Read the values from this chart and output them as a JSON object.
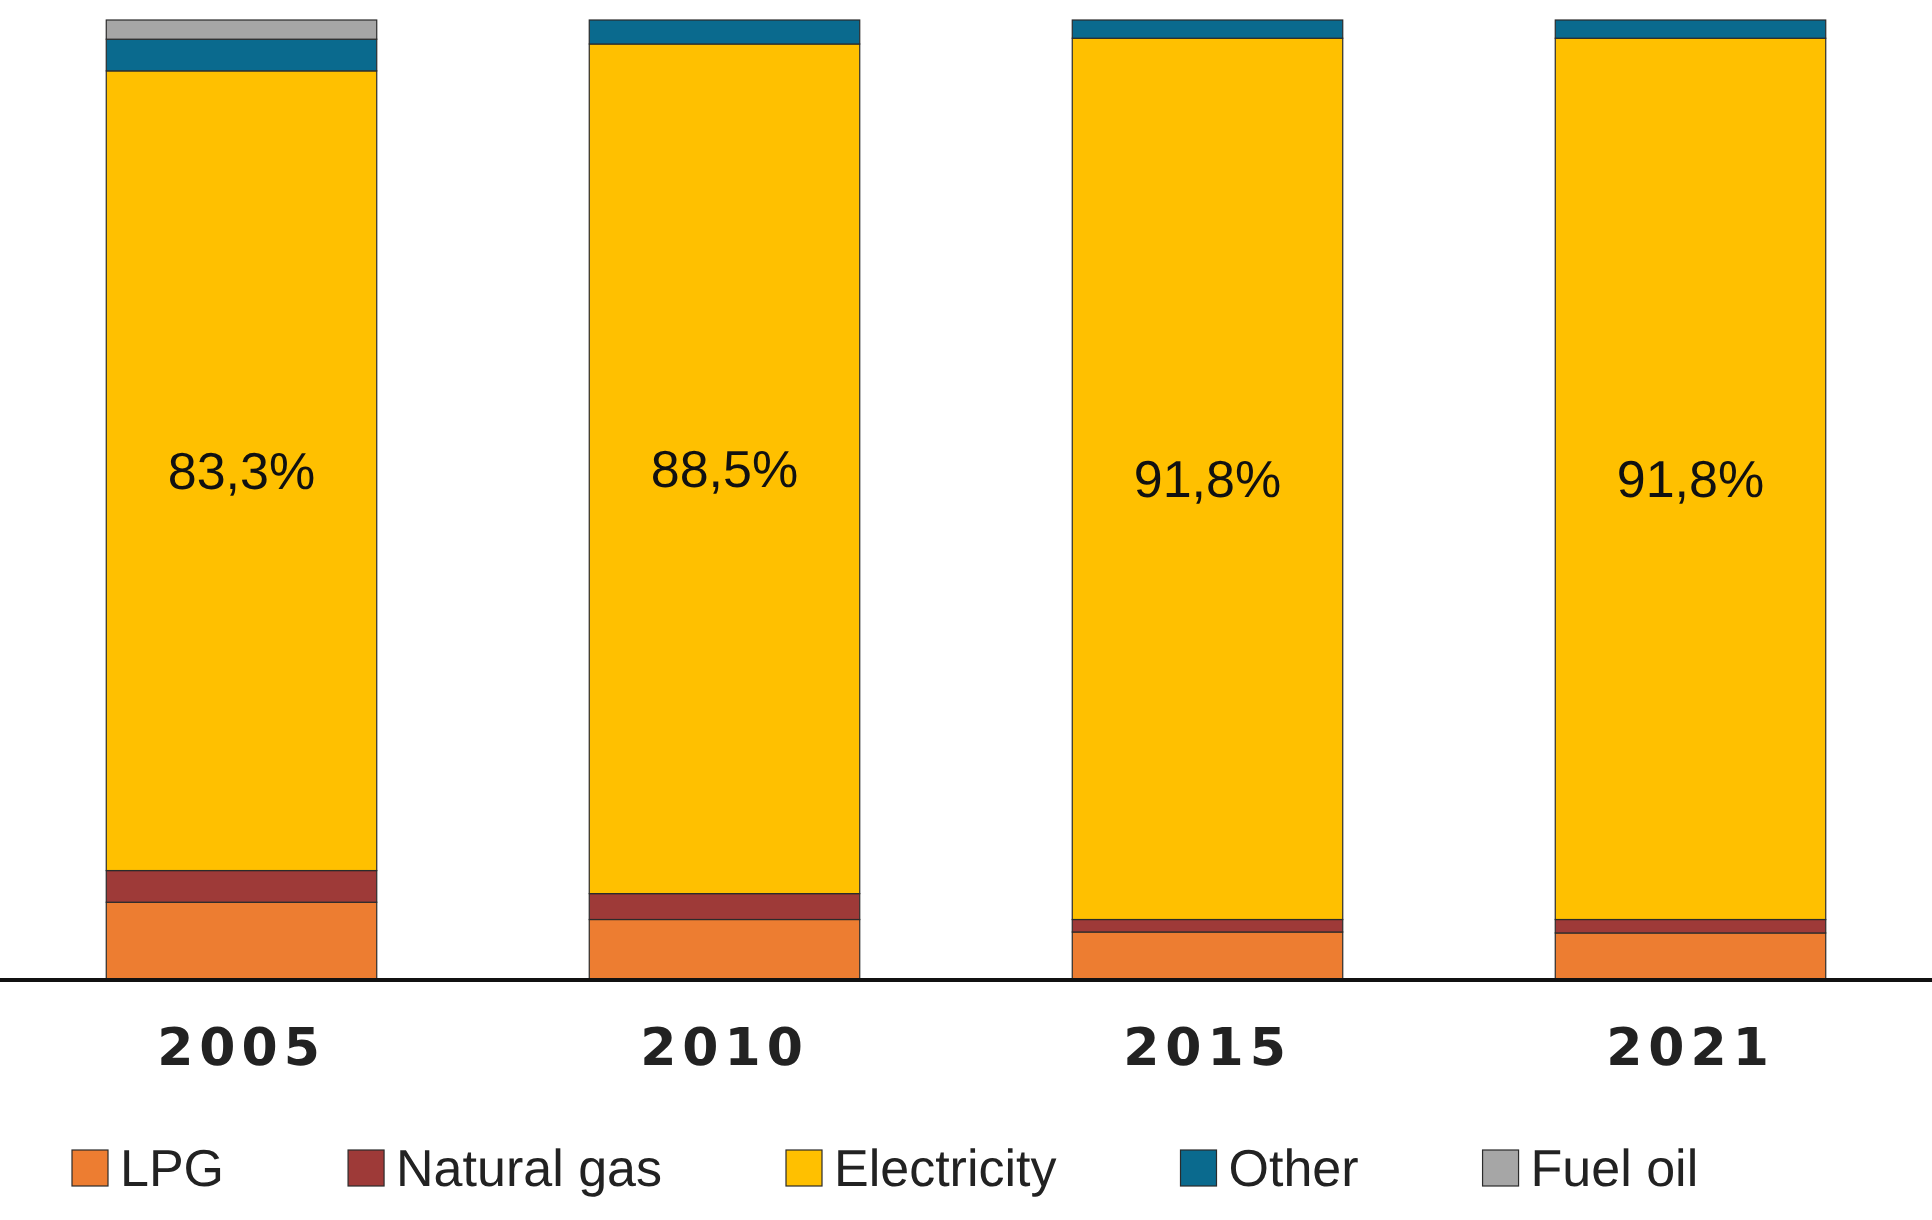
{
  "chart_data": {
    "type": "bar",
    "stacked": true,
    "categories": [
      "2005",
      "2010",
      "2015",
      "2021"
    ],
    "series": [
      {
        "name": "LPG",
        "color": "#ed7d31",
        "values": [
          8.1,
          6.3,
          5.0,
          4.9
        ]
      },
      {
        "name": "Natural gas",
        "color": "#9e3a38",
        "values": [
          3.3,
          2.7,
          1.3,
          1.4
        ]
      },
      {
        "name": "Electricity",
        "color": "#ffc000",
        "values": [
          83.3,
          88.5,
          91.8,
          91.8
        ],
        "value_labels": [
          "83,3%",
          "88,5%",
          "91,8%",
          "91,8%"
        ]
      },
      {
        "name": "Other",
        "color": "#0a6a8e",
        "values": [
          3.3,
          2.5,
          1.9,
          1.9
        ]
      },
      {
        "name": "Fuel oil",
        "color": "#a6a6a6",
        "values": [
          2.0,
          0,
          0,
          0
        ]
      }
    ],
    "ylim": [
      0,
      100
    ],
    "tick_labels": "x",
    "legend": "bottom"
  }
}
